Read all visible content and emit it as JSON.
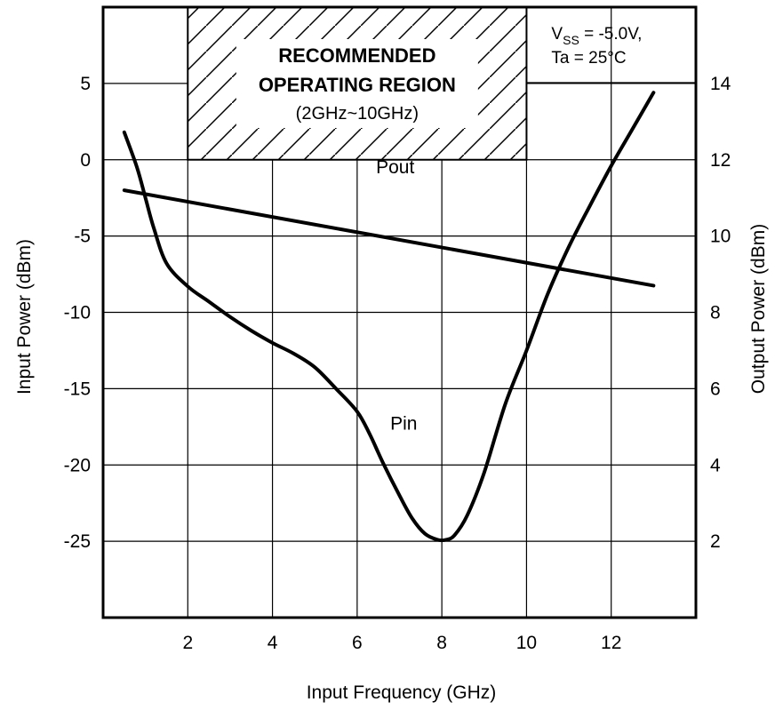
{
  "chart_data": {
    "type": "line",
    "xlabel": "Input Frequency (GHz)",
    "ylabel_left": "Input Power (dBm)",
    "ylabel_right": "Output Power (dBm)",
    "xlim": [
      0,
      14
    ],
    "ylim_left": [
      -30,
      10
    ],
    "ylim_right": [
      0,
      16
    ],
    "x_ticks": [
      "2",
      "4",
      "6",
      "8",
      "10",
      "12"
    ],
    "y_left_ticks": [
      "5",
      "0",
      "-5",
      "-10",
      "-15",
      "-20",
      "-25"
    ],
    "y_right_ticks": [
      "14",
      "12",
      "10",
      "8",
      "6",
      "4",
      "2"
    ],
    "grid": true,
    "conditions": {
      "line1_main": "V",
      "line1_sub": "SS",
      "line1_rest": " = -5.0V,",
      "line2": "Ta = 25°C"
    },
    "recommended_region": {
      "title_line1": "RECOMMENDED",
      "title_line2": "OPERATING REGION",
      "range": "(2GHz~10GHz)",
      "x_start": 2,
      "x_end": 10
    },
    "series": [
      {
        "name": "Pout",
        "axis": "right",
        "x": [
          0.5,
          13.0
        ],
        "y": [
          11.2,
          8.7
        ]
      },
      {
        "name": "Pin",
        "axis": "left",
        "x": [
          0.5,
          0.8,
          1.0,
          1.2,
          1.5,
          2.0,
          2.5,
          3.0,
          3.5,
          4.0,
          4.5,
          5.0,
          5.5,
          6.0,
          6.3,
          6.6,
          7.0,
          7.3,
          7.6,
          7.9,
          8.1,
          8.3,
          8.6,
          9.0,
          9.5,
          10.0,
          10.5,
          11.0,
          11.5,
          12.0,
          12.5,
          13.0
        ],
        "y": [
          1.8,
          -0.5,
          -2.5,
          -4.5,
          -6.8,
          -8.3,
          -9.3,
          -10.3,
          -11.2,
          -12.0,
          -12.7,
          -13.6,
          -15.0,
          -16.5,
          -18.0,
          -19.8,
          -22.0,
          -23.5,
          -24.5,
          -24.9,
          -24.9,
          -24.6,
          -23.3,
          -20.5,
          -16.0,
          -12.5,
          -8.8,
          -5.7,
          -3.0,
          -0.4,
          2.0,
          4.4
        ]
      }
    ]
  }
}
